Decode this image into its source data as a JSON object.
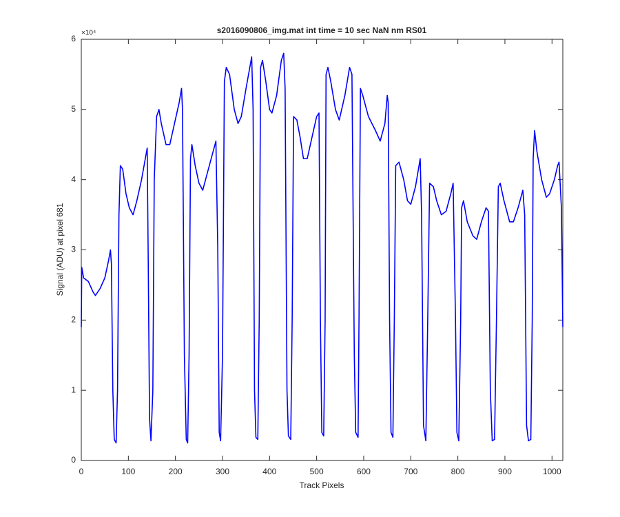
{
  "chart_data": {
    "type": "line",
    "title": "s2016090806_img.mat int time = 10 sec  NaN nm RS01",
    "x_label": "Track Pixels",
    "y_label": "Signal (ADU) at pixel 681",
    "y_exponent_label": "×10⁴",
    "xlim": [
      0,
      1023
    ],
    "ylim": [
      0,
      6
    ],
    "xticks": [
      0,
      100,
      200,
      300,
      400,
      500,
      600,
      700,
      800,
      900,
      1000
    ],
    "yticks": [
      0,
      1,
      2,
      3,
      4,
      5,
      6
    ],
    "grid": false,
    "x": [
      0,
      1,
      5,
      15,
      25,
      30,
      40,
      50,
      58,
      62,
      64,
      67,
      70,
      74,
      77,
      80,
      83,
      88,
      95,
      102,
      110,
      118,
      128,
      136,
      140,
      142,
      145,
      148,
      152,
      155,
      160,
      165,
      170,
      180,
      188,
      198,
      208,
      213,
      215,
      219,
      223,
      226,
      229,
      232,
      235,
      242,
      250,
      258,
      268,
      280,
      286,
      290,
      293,
      296,
      300,
      304,
      308,
      315,
      325,
      333,
      340,
      350,
      358,
      362,
      365,
      368,
      371,
      375,
      378,
      381,
      385,
      392,
      400,
      405,
      415,
      425,
      430,
      433,
      437,
      440,
      445,
      448,
      451,
      458,
      465,
      472,
      480,
      490,
      500,
      505,
      508,
      511,
      515,
      518,
      520,
      524,
      530,
      540,
      548,
      560,
      570,
      575,
      580,
      583,
      588,
      590,
      593,
      598,
      610,
      625,
      635,
      645,
      650,
      652,
      655,
      658,
      662,
      665,
      668,
      675,
      685,
      693,
      700,
      710,
      720,
      723,
      727,
      732,
      736,
      740,
      748,
      755,
      765,
      775,
      785,
      790,
      795,
      798,
      802,
      806,
      808,
      812,
      820,
      832,
      840,
      850,
      860,
      865,
      869,
      873,
      878,
      882,
      886,
      890,
      898,
      910,
      918,
      928,
      938,
      942,
      946,
      950,
      955,
      958,
      960,
      963,
      968,
      978,
      988,
      995,
      1005,
      1012,
      1015,
      1020,
      1023
    ],
    "series": [
      {
        "color": "#0000ff",
        "values": [
          1.9,
          2.75,
          2.6,
          2.55,
          2.4,
          2.35,
          2.45,
          2.6,
          2.85,
          3.0,
          2.8,
          1.0,
          0.3,
          0.25,
          1.0,
          3.5,
          4.2,
          4.15,
          3.8,
          3.6,
          3.5,
          3.7,
          4.0,
          4.3,
          4.45,
          3.0,
          0.6,
          0.28,
          1.0,
          4.0,
          4.9,
          5.0,
          4.8,
          4.5,
          4.5,
          4.8,
          5.1,
          5.3,
          5.0,
          1.5,
          0.3,
          0.25,
          1.5,
          4.3,
          4.5,
          4.2,
          3.95,
          3.85,
          4.1,
          4.4,
          4.55,
          3.0,
          0.4,
          0.28,
          1.5,
          5.4,
          5.6,
          5.5,
          5.0,
          4.8,
          4.9,
          5.3,
          5.6,
          5.75,
          5.0,
          1.0,
          0.33,
          0.3,
          2.0,
          5.6,
          5.7,
          5.4,
          5.0,
          4.95,
          5.2,
          5.7,
          5.8,
          5.3,
          1.0,
          0.35,
          0.3,
          2.0,
          4.9,
          4.85,
          4.6,
          4.3,
          4.3,
          4.6,
          4.9,
          4.95,
          2.0,
          0.4,
          0.35,
          2.0,
          5.5,
          5.6,
          5.4,
          5.0,
          4.85,
          5.2,
          5.6,
          5.5,
          1.5,
          0.4,
          0.33,
          2.0,
          5.3,
          5.2,
          4.9,
          4.7,
          4.55,
          4.8,
          5.2,
          5.1,
          2.0,
          0.4,
          0.33,
          2.0,
          4.2,
          4.25,
          4.0,
          3.7,
          3.65,
          3.9,
          4.3,
          3.5,
          0.5,
          0.28,
          2.0,
          3.95,
          3.9,
          3.7,
          3.5,
          3.55,
          3.8,
          3.95,
          2.0,
          0.4,
          0.28,
          2.0,
          3.6,
          3.7,
          3.4,
          3.2,
          3.15,
          3.4,
          3.6,
          3.55,
          1.0,
          0.28,
          0.3,
          2.0,
          3.9,
          3.95,
          3.7,
          3.4,
          3.4,
          3.6,
          3.85,
          3.5,
          0.5,
          0.28,
          0.3,
          2.0,
          4.3,
          4.7,
          4.4,
          4.0,
          3.75,
          3.8,
          4.0,
          4.2,
          4.25,
          3.6,
          1.9
        ]
      }
    ]
  }
}
